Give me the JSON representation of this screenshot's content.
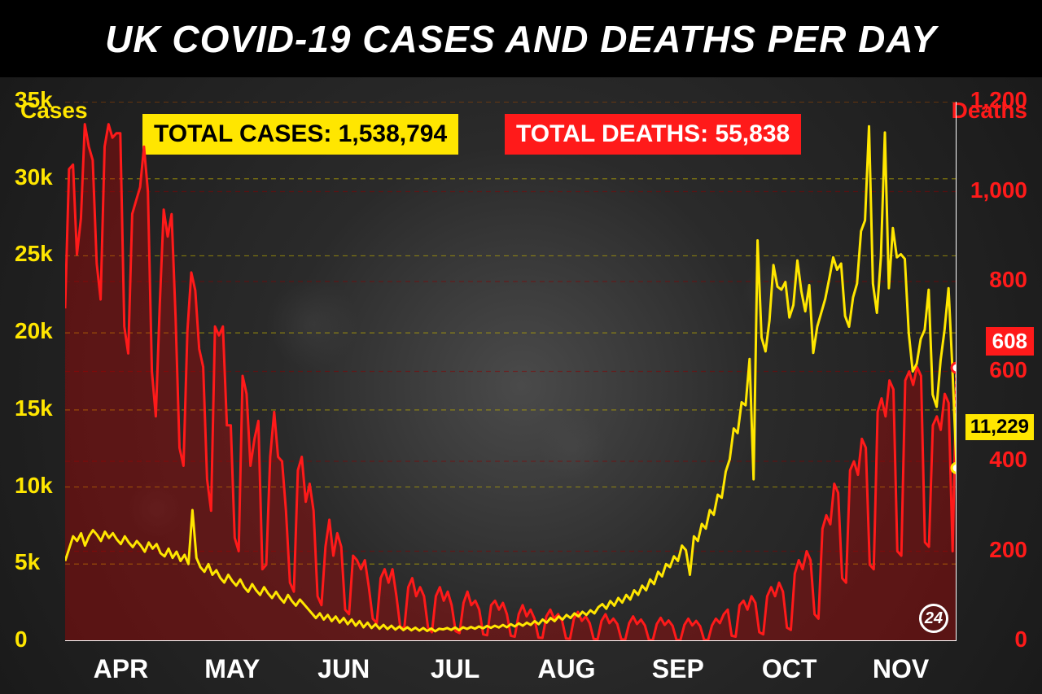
{
  "title": "UK COVID-19 CASES AND DEATHS PER DAY",
  "totals": {
    "cases_label": "TOTAL CASES: 1,538,794",
    "deaths_label": "TOTAL DEATHS: 55,838"
  },
  "axes": {
    "left_title": "Cases",
    "right_title": "Deaths",
    "left_ticks": [
      0,
      "5k",
      "10k",
      "15k",
      "20k",
      "25k",
      "30k",
      "35k"
    ],
    "left_max": 35000,
    "right_ticks": [
      0,
      200,
      400,
      600,
      800,
      "1,000",
      "1,200"
    ],
    "right_max": 1200,
    "months": [
      "APR",
      "MAY",
      "JUN",
      "JUL",
      "AUG",
      "SEP",
      "OCT",
      "NOV"
    ]
  },
  "end_values": {
    "deaths": "608",
    "cases": "11,229"
  },
  "colors": {
    "cases_line": "#ffe600",
    "deaths_line": "#ff1a1a",
    "deaths_fill": "rgba(200,0,0,0.35)",
    "grid_yellow": "#bfae00",
    "grid_red": "#8b0000",
    "bg": "#2a2a2a",
    "title_bg": "#000000",
    "title_fg": "#ffffff"
  },
  "style": {
    "title_fontsize": 46,
    "axis_label_fontsize": 28,
    "month_fontsize": 32,
    "total_fontsize": 30,
    "line_width_cases": 3,
    "line_width_deaths": 3
  },
  "logo": "24",
  "cases_series": [
    5200,
    6000,
    6800,
    6500,
    7000,
    6200,
    6800,
    7200,
    6900,
    6500,
    7100,
    6700,
    7000,
    6600,
    6300,
    6800,
    6400,
    6100,
    6500,
    6200,
    5800,
    6400,
    6000,
    6300,
    5700,
    5500,
    6000,
    5400,
    5800,
    5200,
    5600,
    5000,
    8500,
    5400,
    4800,
    4500,
    5000,
    4300,
    4600,
    4100,
    3800,
    4300,
    3900,
    3600,
    4000,
    3500,
    3200,
    3700,
    3300,
    3000,
    3500,
    3100,
    2800,
    3200,
    2800,
    2500,
    3000,
    2600,
    2300,
    2700,
    2400,
    2100,
    1800,
    1500,
    1800,
    1400,
    1700,
    1300,
    1600,
    1200,
    1500,
    1100,
    1400,
    1000,
    1300,
    900,
    1200,
    850,
    1100,
    800,
    1050,
    780,
    1000,
    750,
    950,
    720,
    900,
    700,
    870,
    680,
    850,
    660,
    820,
    640,
    800,
    760,
    850,
    730,
    880,
    710,
    900,
    790,
    920,
    810,
    950,
    830,
    980,
    860,
    1000,
    880,
    1050,
    900,
    1100,
    950,
    1150,
    1000,
    1200,
    1050,
    1300,
    1100,
    1400,
    1200,
    1500,
    1300,
    1600,
    1400,
    1700,
    1500,
    1800,
    1600,
    1900,
    1700,
    2000,
    1800,
    2200,
    2400,
    2100,
    2600,
    2300,
    2800,
    2500,
    3000,
    2700,
    3300,
    3000,
    3600,
    3300,
    4000,
    3700,
    4500,
    4200,
    5000,
    4800,
    5500,
    5200,
    6200,
    5900,
    4300,
    6800,
    6500,
    7600,
    7300,
    8500,
    8200,
    9500,
    9300,
    11000,
    11800,
    13800,
    13500,
    15500,
    15300,
    18300,
    10500,
    26000,
    19700,
    18800,
    20800,
    24400,
    23000,
    22800,
    23300,
    21000,
    21800,
    24700,
    22700,
    21400,
    23100,
    18700,
    20400,
    21300,
    22200,
    23500,
    24900,
    24100,
    24500,
    21100,
    20400,
    22300,
    23200,
    26600,
    27300,
    33400,
    23200,
    21300,
    24900,
    33000,
    22900,
    26800,
    24900,
    25100,
    24800,
    20000,
    17500,
    18000,
    19600,
    20200,
    22800,
    16000,
    15200,
    18200,
    20200,
    22900,
    17500,
    11229
  ],
  "deaths_series": [
    740,
    1050,
    1060,
    860,
    940,
    1150,
    1100,
    1070,
    840,
    760,
    1100,
    1150,
    1120,
    1130,
    1130,
    700,
    640,
    950,
    980,
    1010,
    1100,
    1000,
    600,
    500,
    750,
    960,
    900,
    950,
    720,
    430,
    390,
    690,
    820,
    780,
    650,
    610,
    360,
    290,
    700,
    680,
    700,
    480,
    480,
    230,
    200,
    590,
    550,
    390,
    450,
    490,
    160,
    170,
    410,
    510,
    410,
    400,
    290,
    130,
    110,
    380,
    410,
    310,
    350,
    290,
    100,
    80,
    210,
    270,
    190,
    240,
    210,
    70,
    60,
    190,
    180,
    160,
    180,
    120,
    50,
    40,
    140,
    160,
    130,
    160,
    100,
    30,
    30,
    120,
    140,
    100,
    120,
    100,
    30,
    20,
    100,
    120,
    90,
    110,
    80,
    22,
    18,
    85,
    110,
    80,
    90,
    70,
    15,
    13,
    80,
    90,
    70,
    85,
    60,
    12,
    10,
    60,
    80,
    55,
    70,
    50,
    8,
    7,
    55,
    70,
    50,
    60,
    45,
    6,
    5,
    50,
    65,
    45,
    55,
    40,
    5,
    4,
    45,
    60,
    40,
    50,
    38,
    4,
    3,
    40,
    55,
    38,
    48,
    35,
    3,
    2,
    38,
    52,
    36,
    46,
    34,
    3,
    2,
    36,
    50,
    35,
    45,
    33,
    3,
    2,
    35,
    50,
    40,
    60,
    70,
    12,
    10,
    80,
    90,
    70,
    100,
    85,
    20,
    15,
    100,
    120,
    100,
    130,
    110,
    30,
    25,
    150,
    180,
    160,
    200,
    180,
    60,
    50,
    250,
    280,
    260,
    350,
    330,
    140,
    130,
    380,
    400,
    370,
    450,
    430,
    170,
    160,
    510,
    540,
    500,
    580,
    560,
    200,
    190,
    580,
    600,
    570,
    610,
    590,
    220,
    210,
    480,
    500,
    470,
    550,
    530,
    200,
    608
  ]
}
